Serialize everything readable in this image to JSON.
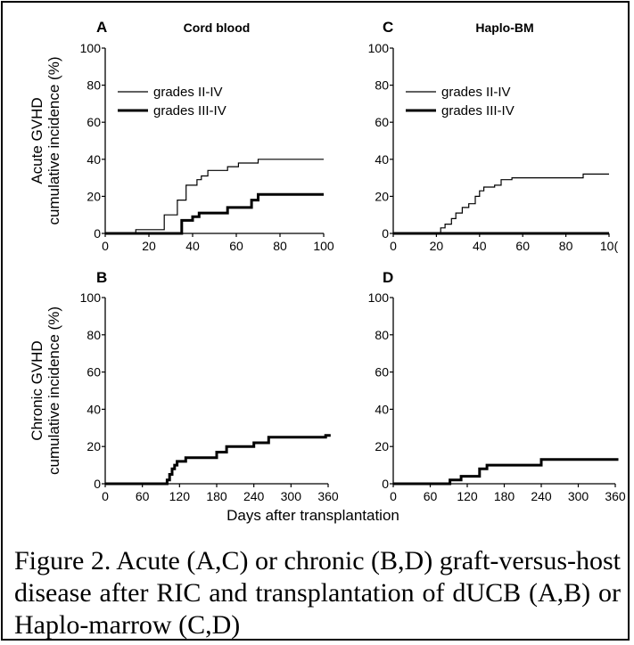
{
  "figure": {
    "xlabel_shared": "Days after transplantation",
    "caption": "Figure 2.  Acute (A,C) or chronic (B,D) graft-versus-host disease after RIC and transplantation of dUCB (A,B) or Haplo-marrow (C,D)"
  },
  "chart_data": [
    {
      "panel": "A",
      "type": "line",
      "title": "Cord blood",
      "ylabel": [
        "Acute GVHD",
        "cumulative incidence (%)"
      ],
      "xlim": [
        0,
        100
      ],
      "ylim": [
        0,
        100
      ],
      "xticks": [
        "0",
        "20",
        "40",
        "60",
        "80",
        "100"
      ],
      "yticks": [
        "0",
        "20",
        "40",
        "60",
        "80",
        "100"
      ],
      "legend": "top-left",
      "series": [
        {
          "name": "grades II-IV",
          "weight": "thin",
          "step": true,
          "x": [
            0,
            14,
            14,
            27,
            27,
            33,
            33,
            37,
            37,
            42,
            42,
            44,
            44,
            47,
            47,
            56,
            56,
            61,
            61,
            70,
            70,
            100
          ],
          "y": [
            0,
            0,
            2,
            2,
            10,
            10,
            18,
            18,
            26,
            26,
            29,
            29,
            31,
            31,
            34,
            34,
            36,
            36,
            38,
            38,
            40,
            40
          ]
        },
        {
          "name": "grades III-IV",
          "weight": "thick",
          "step": true,
          "x": [
            0,
            35,
            35,
            40,
            40,
            43,
            43,
            56,
            56,
            67,
            67,
            70,
            70,
            100
          ],
          "y": [
            0,
            0,
            7,
            7,
            9,
            9,
            11,
            11,
            14,
            14,
            18,
            18,
            21,
            21
          ]
        }
      ]
    },
    {
      "panel": "C",
      "type": "line",
      "title": "Haplo-BM",
      "ylabel": [],
      "xlim": [
        0,
        100
      ],
      "ylim": [
        0,
        100
      ],
      "xticks": [
        "0",
        "20",
        "40",
        "60",
        "80",
        "10("
      ],
      "yticks": [
        "0",
        "20",
        "40",
        "60",
        "80",
        "100"
      ],
      "legend": "top-left",
      "series": [
        {
          "name": "grades II-IV",
          "weight": "thin",
          "step": true,
          "x": [
            0,
            22,
            22,
            24,
            24,
            27,
            27,
            29,
            29,
            32,
            32,
            35,
            35,
            38,
            38,
            40,
            40,
            42,
            42,
            47,
            47,
            50,
            50,
            55,
            55,
            88,
            88,
            100
          ],
          "y": [
            0,
            0,
            3,
            3,
            5,
            5,
            8,
            8,
            11,
            11,
            14,
            14,
            16,
            16,
            20,
            20,
            23,
            23,
            25,
            25,
            26,
            26,
            29,
            29,
            30,
            30,
            32,
            32
          ]
        },
        {
          "name": "grades III-IV",
          "weight": "thick",
          "step": true,
          "x": [
            0,
            100
          ],
          "y": [
            0,
            0
          ]
        }
      ]
    },
    {
      "panel": "B",
      "type": "line",
      "title": "",
      "ylabel": [
        "Chronic GVHD",
        "cumulative incidence (%)"
      ],
      "xlim": [
        0,
        360
      ],
      "ylim": [
        0,
        100
      ],
      "xticks": [
        "0",
        "60",
        "120",
        "180",
        "240",
        "300",
        "360"
      ],
      "yticks": [
        "0",
        "20",
        "40",
        "60",
        "80",
        "100"
      ],
      "legend": "none",
      "series": [
        {
          "name": "",
          "weight": "thick",
          "step": true,
          "x": [
            0,
            100,
            100,
            104,
            104,
            108,
            108,
            112,
            112,
            116,
            116,
            130,
            130,
            180,
            180,
            196,
            196,
            240,
            240,
            264,
            264,
            356,
            356,
            364
          ],
          "y": [
            0,
            0,
            2,
            2,
            5,
            5,
            8,
            8,
            10,
            10,
            12,
            12,
            14,
            14,
            17,
            17,
            20,
            20,
            22,
            22,
            25,
            25,
            26,
            26
          ]
        }
      ]
    },
    {
      "panel": "D",
      "type": "line",
      "title": "",
      "ylabel": [],
      "xlim": [
        0,
        360
      ],
      "ylim": [
        0,
        100
      ],
      "xticks": [
        "0",
        "60",
        "120",
        "180",
        "240",
        "300",
        "360"
      ],
      "yticks": [
        "0",
        "20",
        "40",
        "60",
        "80",
        "100"
      ],
      "legend": "none",
      "series": [
        {
          "name": "",
          "weight": "thick",
          "step": true,
          "x": [
            0,
            92,
            92,
            110,
            110,
            140,
            140,
            152,
            152,
            240,
            240,
            365
          ],
          "y": [
            0,
            0,
            2,
            2,
            4,
            4,
            8,
            8,
            10,
            10,
            13,
            13
          ]
        }
      ]
    }
  ]
}
